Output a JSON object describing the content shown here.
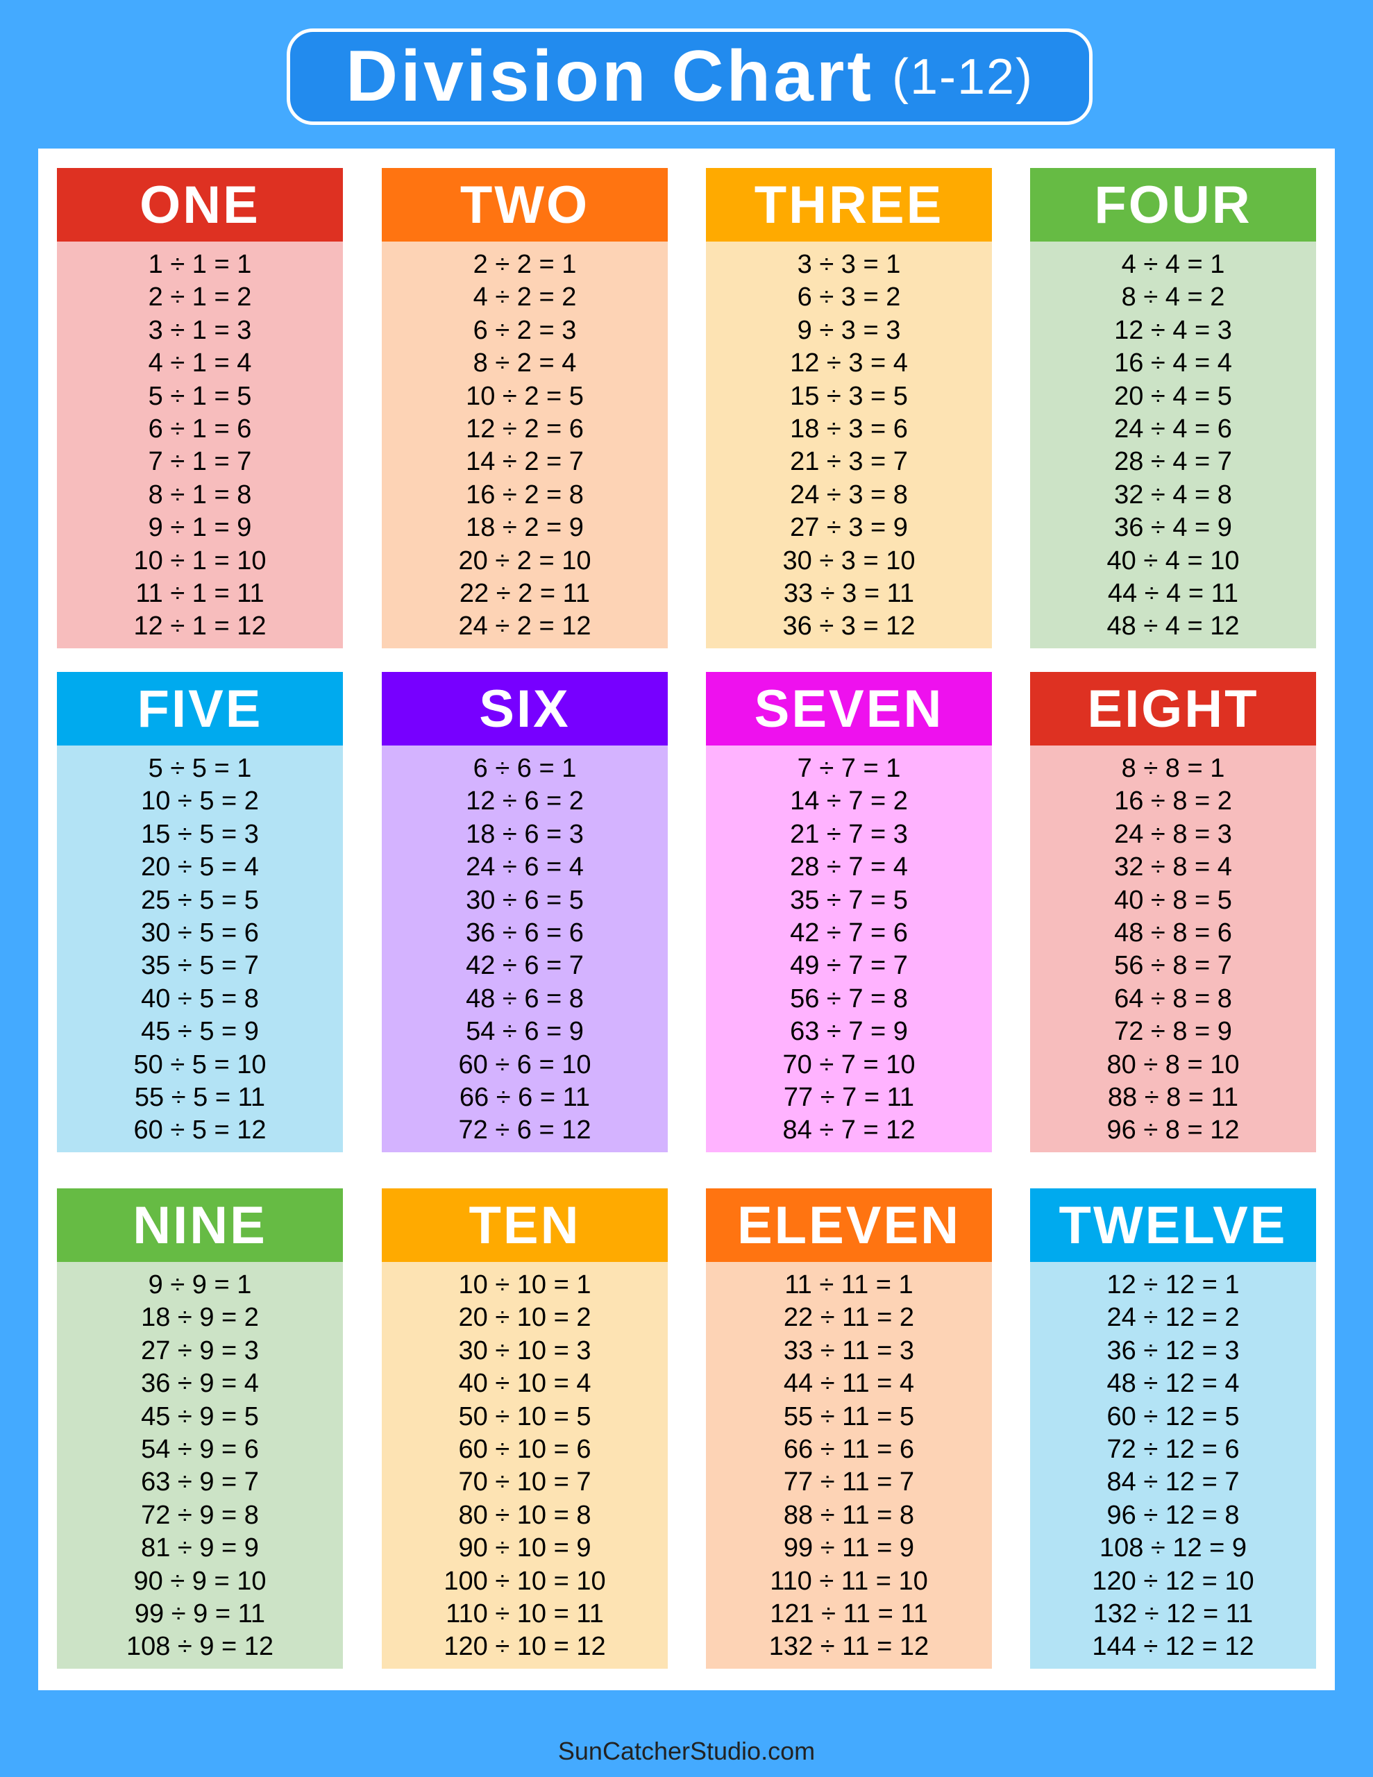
{
  "title": {
    "main": "Division Chart",
    "sub": "(1-12)"
  },
  "footer": "SunCatcherStudio.com",
  "colors": {
    "background": "#44AAFF",
    "title_box": "#228BEE"
  },
  "cards": [
    {
      "label": "ONE",
      "divisor": 1,
      "header_color": "#DE3122",
      "body_color": "#F7BDBD"
    },
    {
      "label": "TWO",
      "divisor": 2,
      "header_color": "#FF7411",
      "body_color": "#FDD3B5"
    },
    {
      "label": "THREE",
      "divisor": 3,
      "header_color": "#FFAA00",
      "body_color": "#FDE3B3"
    },
    {
      "label": "FOUR",
      "divisor": 4,
      "header_color": "#66BB44",
      "body_color": "#CCE3C6"
    },
    {
      "label": "FIVE",
      "divisor": 5,
      "header_color": "#00AAEE",
      "body_color": "#B3E3F5"
    },
    {
      "label": "SIX",
      "divisor": 6,
      "header_color": "#7700FF",
      "body_color": "#D4B3FF"
    },
    {
      "label": "SEVEN",
      "divisor": 7,
      "header_color": "#EE11EE",
      "body_color": "#FFB3FF"
    },
    {
      "label": "EIGHT",
      "divisor": 8,
      "header_color": "#DE3122",
      "body_color": "#F7BDBD"
    },
    {
      "label": "NINE",
      "divisor": 9,
      "header_color": "#66BB44",
      "body_color": "#CCE3C6"
    },
    {
      "label": "TEN",
      "divisor": 10,
      "header_color": "#FFAA00",
      "body_color": "#FDE3B3"
    },
    {
      "label": "ELEVEN",
      "divisor": 11,
      "header_color": "#FF7411",
      "body_color": "#FDD3B5"
    },
    {
      "label": "TWELVE",
      "divisor": 12,
      "header_color": "#00AAEE",
      "body_color": "#B3E3F5"
    }
  ]
}
